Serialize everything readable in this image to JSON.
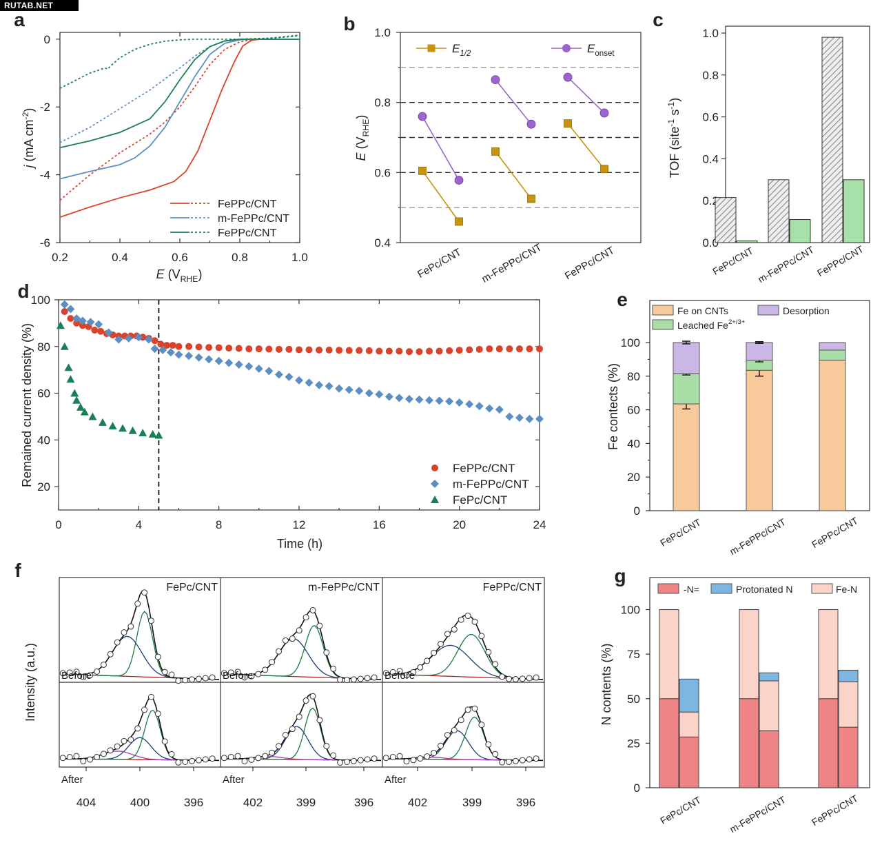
{
  "watermark": "RUTAB.NET",
  "panel_letters": [
    "a",
    "b",
    "c",
    "d",
    "e",
    "f",
    "g"
  ],
  "colors": {
    "red": "#d9432b",
    "blue": "#5b8fc4",
    "green": "#1a7f55",
    "darkgreen": "#1e6a4a",
    "gold": "#c8930e",
    "purple": "#9b64cf",
    "tof_green": "#a7e0a8",
    "peach": "#f8c99a",
    "lightgreen": "#a9dfa6",
    "lavender": "#cbb7e6",
    "pinkred": "#ef8487",
    "lightblue": "#7eb6e2",
    "lightpink": "#fbd3c8",
    "navy": "#1c3f7a",
    "dgreen2": "#1b7a45",
    "brown": "#b22222",
    "magenta": "#a040b0"
  },
  "chart_data": [
    {
      "panel": "a",
      "type": "line",
      "xlabel": "E (V",
      "xlabel_sub": "RHE",
      "xlabel_close": ")",
      "ylabel": "j (mA cm",
      "ylabel_sup": "-2",
      "ylabel_close": ")",
      "xlim": [
        0.2,
        1.0
      ],
      "ylim": [
        -6,
        0.2
      ],
      "xticks": [
        "0.2",
        "0.4",
        "0.6",
        "0.8",
        "1.0"
      ],
      "yticks": [
        "0",
        "-2",
        "-4",
        "-6"
      ],
      "legend": [
        "FePPc/CNT",
        "m-FePPc/CNT",
        "FePPc/CNT"
      ],
      "series": [
        {
          "name": "FePPc/CNT",
          "style": "solid",
          "color": "red",
          "x": [
            0.2,
            0.3,
            0.4,
            0.5,
            0.58,
            0.62,
            0.66,
            0.7,
            0.74,
            0.78,
            0.81,
            0.84,
            0.87,
            0.9,
            1.0
          ],
          "y": [
            -5.25,
            -4.95,
            -4.68,
            -4.45,
            -4.2,
            -3.9,
            -3.3,
            -2.4,
            -1.5,
            -0.7,
            -0.2,
            -0.03,
            0,
            0,
            0
          ]
        },
        {
          "name": "FePPc/CNT",
          "style": "dashed",
          "color": "red",
          "x": [
            0.2,
            0.3,
            0.4,
            0.5,
            0.55,
            0.6,
            0.65,
            0.7,
            0.75,
            0.8,
            0.85,
            0.9,
            1.0
          ],
          "y": [
            -4.75,
            -4.0,
            -3.35,
            -2.8,
            -2.45,
            -2.0,
            -1.4,
            -0.75,
            -0.3,
            -0.08,
            0,
            0.02,
            0.1
          ]
        },
        {
          "name": "m-FePPc/CNT",
          "style": "solid",
          "color": "blue",
          "x": [
            0.2,
            0.3,
            0.4,
            0.45,
            0.5,
            0.55,
            0.6,
            0.65,
            0.7,
            0.75,
            0.8,
            0.85,
            0.9,
            1.0
          ],
          "y": [
            -4.12,
            -3.9,
            -3.7,
            -3.5,
            -3.15,
            -2.6,
            -1.85,
            -1.1,
            -0.45,
            -0.12,
            -0.02,
            0,
            0,
            0
          ]
        },
        {
          "name": "m-FePPc/CNT",
          "style": "dashed",
          "color": "blue",
          "x": [
            0.2,
            0.3,
            0.4,
            0.5,
            0.6,
            0.65,
            0.7,
            0.75,
            0.8,
            0.9,
            1.0
          ],
          "y": [
            -3.05,
            -2.6,
            -2.05,
            -1.5,
            -0.85,
            -0.5,
            -0.22,
            -0.06,
            0,
            0.02,
            0.1
          ]
        },
        {
          "name": "FePPc/CNT",
          "style": "solid",
          "color": "green",
          "x": [
            0.2,
            0.3,
            0.4,
            0.5,
            0.55,
            0.6,
            0.65,
            0.7,
            0.75,
            0.8,
            0.85,
            1.0
          ],
          "y": [
            -3.2,
            -3.0,
            -2.75,
            -2.35,
            -1.85,
            -1.2,
            -0.6,
            -0.22,
            -0.05,
            0,
            0,
            0
          ]
        },
        {
          "name": "FePPc/CNT",
          "style": "dashed",
          "color": "green",
          "x": [
            0.2,
            0.3,
            0.35,
            0.36,
            0.37,
            0.4,
            0.45,
            0.5,
            0.55,
            0.6,
            0.65,
            0.7,
            0.8,
            0.9,
            1.0
          ],
          "y": [
            -1.45,
            -1.0,
            -0.85,
            -0.88,
            -0.78,
            -0.55,
            -0.3,
            -0.15,
            -0.06,
            -0.02,
            0,
            0,
            0,
            0.03,
            0.12
          ]
        }
      ]
    },
    {
      "panel": "b",
      "type": "scatter",
      "ylabel": "E (V",
      "ylabel_sub": "RHE",
      "ylabel_close": ")",
      "ylim": [
        0.4,
        1.0
      ],
      "yticks": [
        "0.4",
        "0.6",
        "0.8",
        "1.0"
      ],
      "dashed_lines": [
        0.5,
        0.6,
        0.7,
        0.8,
        0.9
      ],
      "categories": [
        "FePc/CNT",
        "m-FePPc/CNT",
        "FePPc/CNT"
      ],
      "legend": [
        {
          "label": "E",
          "sub": "1/2",
          "color": "gold"
        },
        {
          "label": "E",
          "sub": "onset",
          "color": "purple"
        }
      ],
      "series": [
        {
          "name": "E1/2",
          "color": "gold",
          "pairs": [
            [
              0.605,
              0.46
            ],
            [
              0.66,
              0.525
            ],
            [
              0.74,
              0.61
            ]
          ]
        },
        {
          "name": "Eonset",
          "color": "purple",
          "pairs": [
            [
              0.76,
              0.578
            ],
            [
              0.865,
              0.738
            ],
            [
              0.872,
              0.77
            ]
          ]
        }
      ]
    },
    {
      "panel": "c",
      "type": "bar",
      "ylabel": "TOF (site",
      "ylabel_sup1": "-1",
      "ylabel_mid": " s",
      "ylabel_sup2": "-1",
      "ylabel_close": ")",
      "ylim": [
        0,
        1.0
      ],
      "yticks": [
        "0.0",
        "0.2",
        "0.4",
        "0.6",
        "0.8",
        "1.0"
      ],
      "categories": [
        "FePc/CNT",
        "m-FePPc/CNT",
        "FePPc/CNT"
      ],
      "series": [
        {
          "style": "hatched",
          "values": [
            0.215,
            0.3,
            0.98
          ]
        },
        {
          "style": "green",
          "values": [
            0.008,
            0.11,
            0.3
          ]
        }
      ]
    },
    {
      "panel": "d",
      "type": "scatter",
      "xlabel": "Time (h)",
      "ylabel": "Remained current density (%)",
      "xlim": [
        0,
        24
      ],
      "ylim": [
        10,
        100
      ],
      "xticks": [
        "0",
        "4",
        "8",
        "12",
        "16",
        "20",
        "24"
      ],
      "yticks": [
        "20",
        "40",
        "60",
        "80",
        "100"
      ],
      "vline": 5,
      "legend": [
        "FePPc/CNT",
        "m-FePPc/CNT",
        "FePc/CNT"
      ],
      "series": [
        {
          "name": "FePPc/CNT",
          "marker": "circle",
          "color": "red",
          "x": [
            0.3,
            0.6,
            0.9,
            1.2,
            1.5,
            1.8,
            2.1,
            2.4,
            2.7,
            3.0,
            3.3,
            3.6,
            3.9,
            4.2,
            4.5,
            4.8,
            5.1,
            5.4,
            5.7,
            6.0,
            6.5,
            7.0,
            7.5,
            8.0,
            8.5,
            9.0,
            9.5,
            10,
            10.5,
            11,
            11.5,
            12,
            12.5,
            13,
            13.5,
            14,
            14.5,
            15,
            15.5,
            16,
            16.5,
            17,
            17.5,
            18,
            18.5,
            19,
            19.5,
            20,
            20.5,
            21,
            21.5,
            22,
            22.5,
            23,
            23.5,
            24
          ],
          "y": [
            95,
            92,
            90,
            89,
            88.5,
            87,
            86.5,
            85.5,
            85,
            84.5,
            84.5,
            84.5,
            84.5,
            84,
            83.5,
            82.5,
            81,
            80.5,
            80.5,
            80,
            80,
            79.8,
            79.6,
            79.5,
            79.3,
            79.2,
            79,
            79,
            78.9,
            78.8,
            78.8,
            78.6,
            78.6,
            78.5,
            78.5,
            78.4,
            78.3,
            78.3,
            78.2,
            78,
            78,
            78,
            77.8,
            77.8,
            78,
            78,
            78.2,
            78.4,
            78.6,
            78.8,
            79,
            79,
            79,
            79,
            79,
            79
          ]
        },
        {
          "name": "m-FePPc/CNT",
          "marker": "diamond",
          "color": "blue",
          "x": [
            0.3,
            0.6,
            0.9,
            1.2,
            1.6,
            2.0,
            2.5,
            3.0,
            3.5,
            4.0,
            4.5,
            4.8,
            5.2,
            5.6,
            6.0,
            6.5,
            7.0,
            7.5,
            8.0,
            8.5,
            9.0,
            9.5,
            10,
            10.5,
            11,
            11.5,
            12,
            12.5,
            13,
            13.5,
            14,
            14.5,
            15,
            15.5,
            16,
            16.5,
            17,
            17.5,
            18,
            18.5,
            19,
            19.5,
            20,
            20.5,
            21,
            21.5,
            22,
            22.5,
            23,
            23.5,
            24
          ],
          "y": [
            98,
            96,
            92,
            91,
            90.5,
            89.5,
            86,
            83,
            83.5,
            84,
            83,
            79,
            78.5,
            77.5,
            76.5,
            76,
            75.3,
            74.5,
            73.8,
            73,
            72.3,
            71.5,
            70.5,
            69.5,
            68,
            67,
            65.5,
            64.5,
            63.5,
            63,
            62,
            61.5,
            61,
            60,
            59.5,
            58.5,
            58,
            57.5,
            57.3,
            57,
            56.8,
            56.5,
            56,
            55.3,
            54.5,
            53.5,
            53,
            50,
            49.5,
            49,
            49
          ]
        },
        {
          "name": "FePc/CNT",
          "marker": "triangle",
          "color": "green",
          "x": [
            0.1,
            0.3,
            0.5,
            0.6,
            0.8,
            0.9,
            1.1,
            1.3,
            1.7,
            2.2,
            2.7,
            3.2,
            3.7,
            4.2,
            4.7,
            5.0
          ],
          "y": [
            89,
            80,
            71,
            66,
            60,
            57,
            54,
            52,
            50,
            47.5,
            46,
            45,
            44,
            43,
            42.5,
            42
          ]
        }
      ]
    },
    {
      "panel": "e",
      "type": "bar",
      "stacked": true,
      "ylabel": "Fe contects (%)",
      "ylim": [
        0,
        125
      ],
      "yticks": [
        "0",
        "20",
        "40",
        "60",
        "80",
        "100"
      ],
      "categories": [
        "FePc/CNT",
        "m-FePPc/CNT",
        "FePPc/CNT"
      ],
      "legend": [
        {
          "label": "Fe on CNTs",
          "color": "peach"
        },
        {
          "label": "Desorption",
          "color": "lavender"
        },
        {
          "label": "Leached Fe",
          "sup": "2+/3+",
          "color": "lightgreen"
        }
      ],
      "series": [
        {
          "name": "Fe on CNTs",
          "values": [
            63.5,
            83.5,
            89.5
          ],
          "err": [
            3,
            3.5,
            0
          ]
        },
        {
          "name": "Leached Fe2+/3+",
          "values": [
            18,
            6,
            6
          ],
          "err": [
            0.8,
            1,
            0
          ]
        },
        {
          "name": "Desorption",
          "values": [
            18.5,
            10.5,
            4.5
          ],
          "err": [
            0.8,
            0.5,
            0
          ]
        }
      ]
    },
    {
      "panel": "f",
      "type": "line",
      "ylabel": "Intensity (a.u.)",
      "subpanels": [
        {
          "title": "FePc/CNT",
          "xticks": [
            "404",
            "400",
            "396"
          ],
          "before": "Before",
          "after": "After"
        },
        {
          "title": "m-FePPc/CNT",
          "xticks": [
            "402",
            "399",
            "396"
          ],
          "before": "Before",
          "after": "After"
        },
        {
          "title": "FePPc/CNT",
          "xticks": [
            "402",
            "399",
            "396"
          ],
          "before": "Before",
          "after": "After"
        }
      ]
    },
    {
      "panel": "g",
      "type": "bar",
      "stacked": true,
      "ylabel": "N contents (%)",
      "ylim": [
        0,
        118
      ],
      "yticks": [
        "0",
        "25",
        "50",
        "75",
        "100"
      ],
      "categories": [
        "FePc/CNT",
        "m-FePPc/CNT",
        "FePPc/CNT"
      ],
      "legend": [
        {
          "label": "-N=",
          "color": "pinkred"
        },
        {
          "label": "Protonated N",
          "color": "lightblue"
        },
        {
          "label": "Fe-N",
          "color": "lightpink"
        }
      ],
      "bars": [
        {
          "segments": [
            50,
            0,
            50
          ]
        },
        {
          "segments": [
            28.5,
            14,
            18.5
          ]
        },
        {
          "segments": [
            50,
            0,
            50
          ]
        },
        {
          "segments": [
            32,
            28,
            4.5
          ]
        },
        {
          "segments": [
            50,
            0,
            50
          ]
        },
        {
          "segments": [
            34,
            25.5,
            6.5
          ]
        }
      ]
    }
  ]
}
